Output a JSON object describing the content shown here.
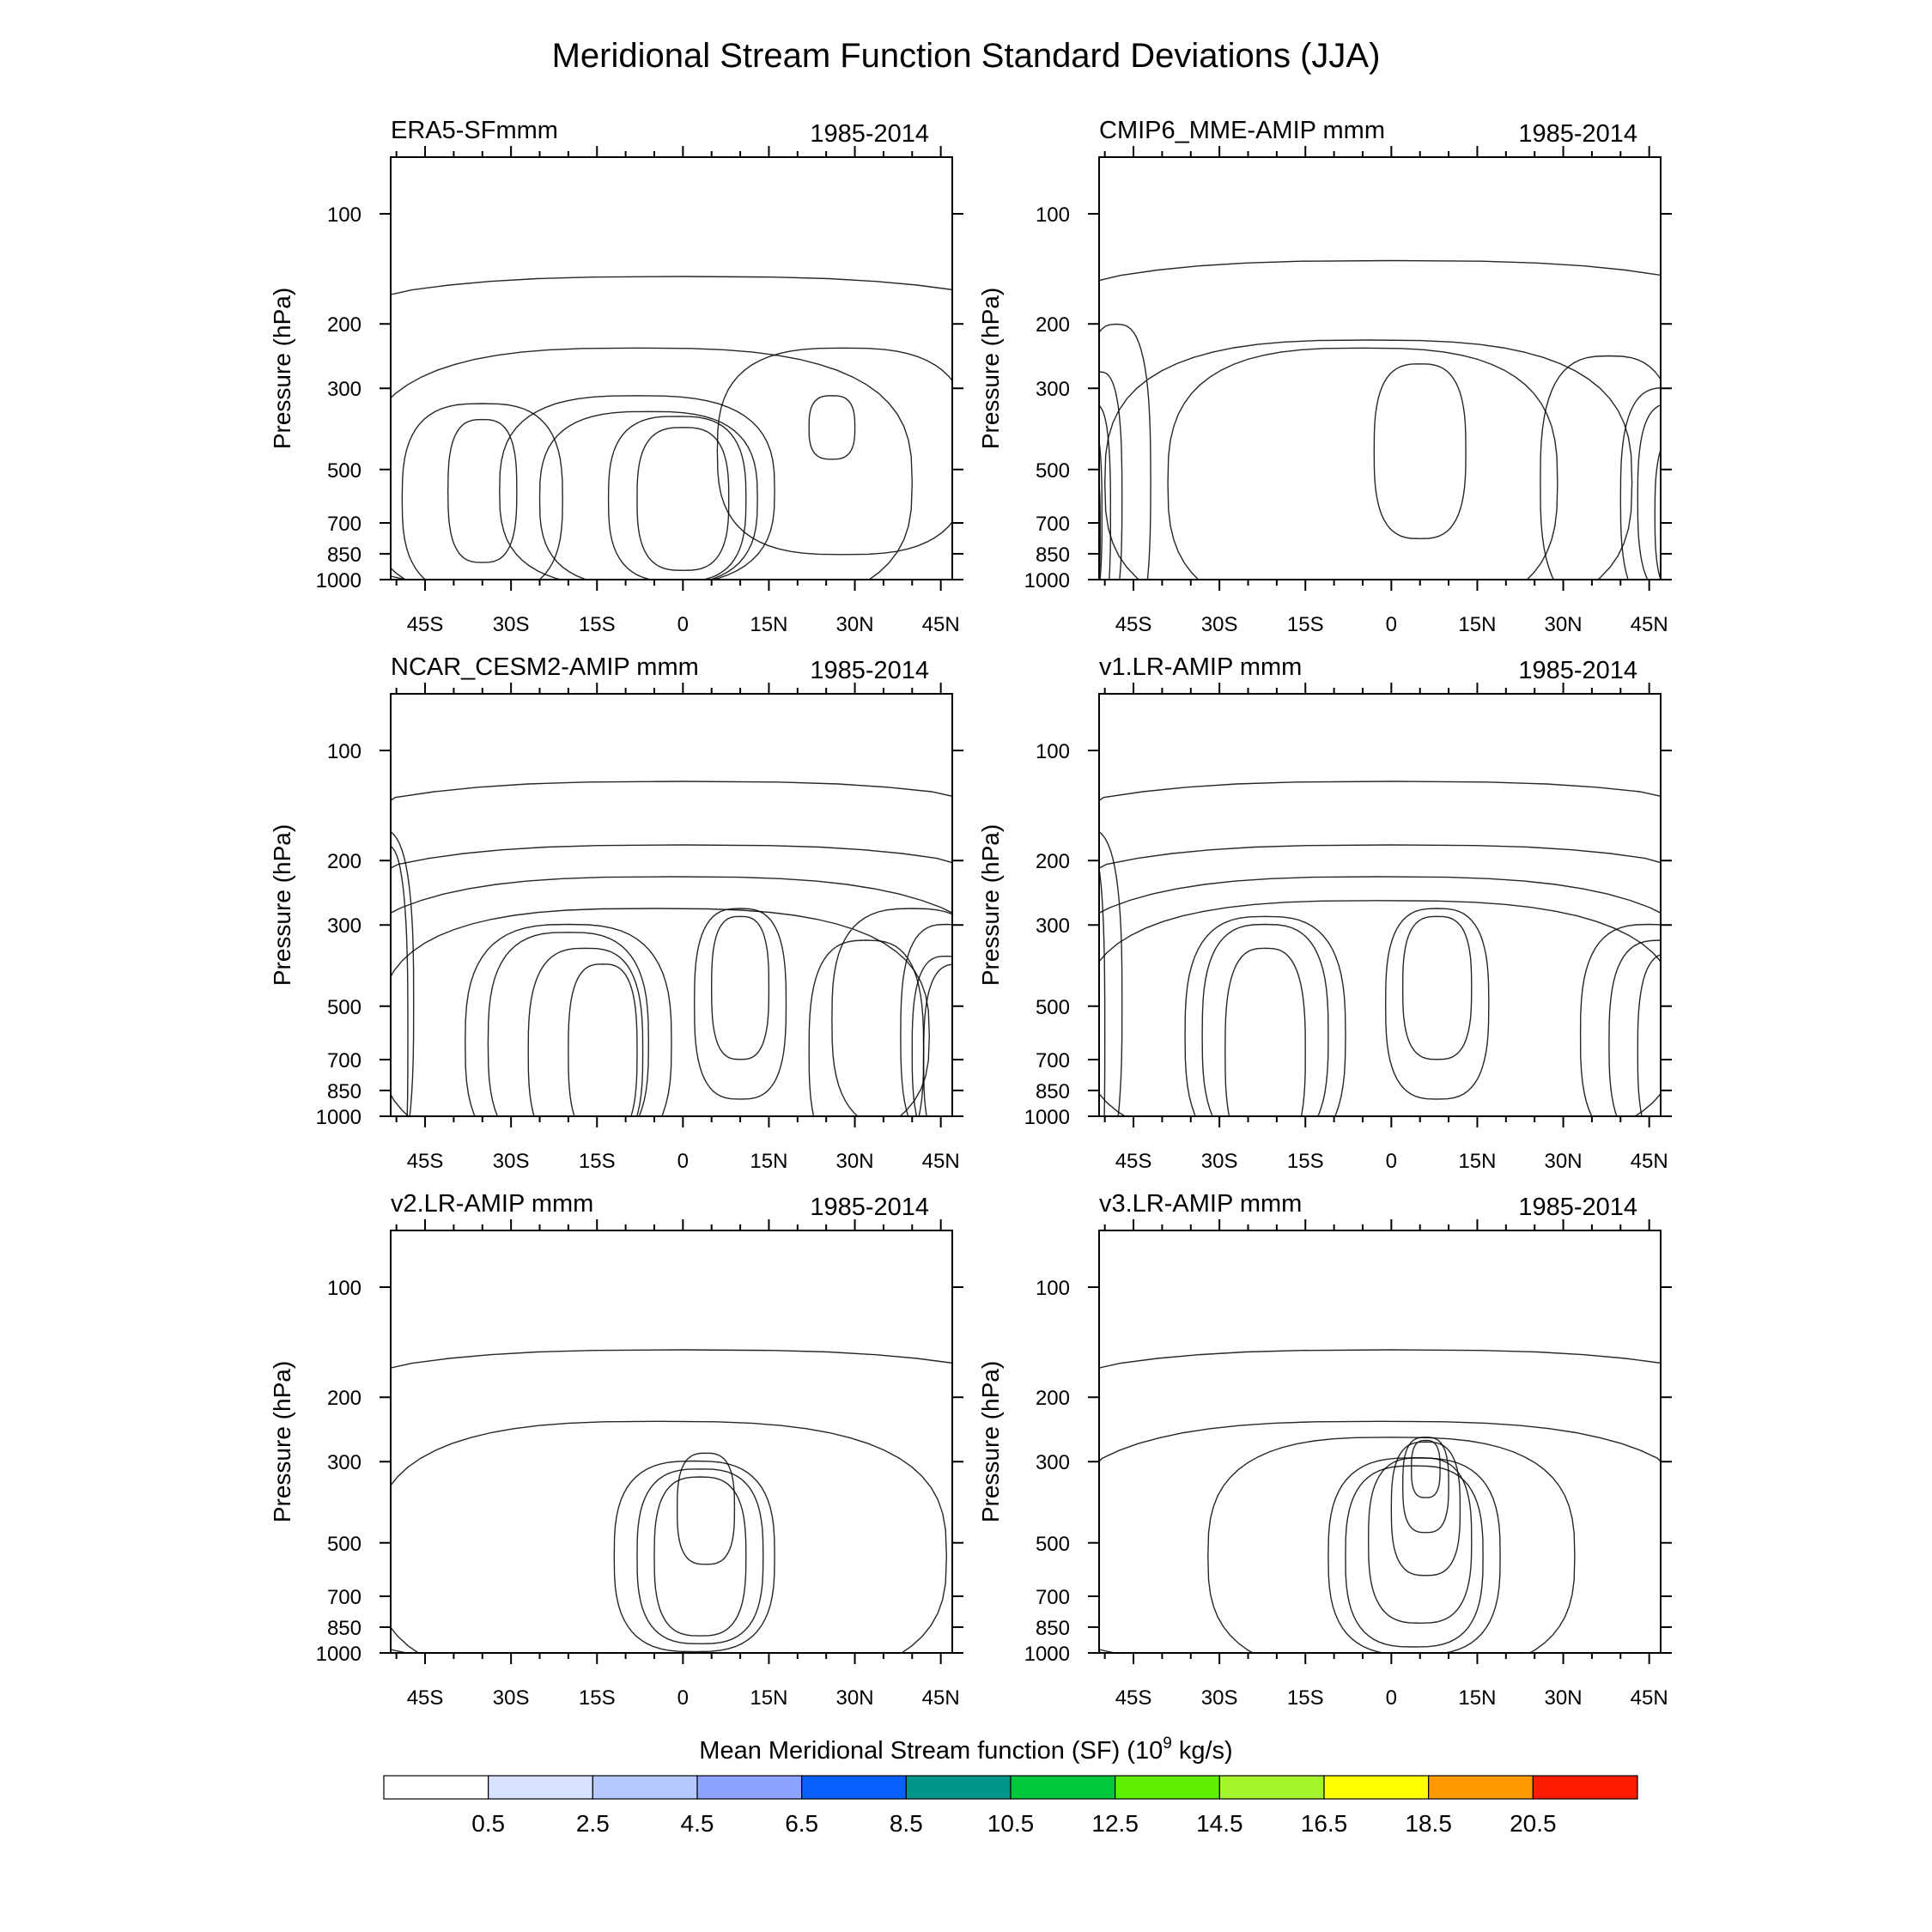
{
  "chart_data": {
    "type": "contourf",
    "title": "Meridional Stream Function Standard Deviations (JJA)",
    "ylabel": "Pressure (hPa)",
    "y_ticks": [
      100,
      200,
      300,
      500,
      700,
      850,
      1000
    ],
    "x_ticks": [
      "45S",
      "30S",
      "15S",
      "0",
      "15N",
      "30N",
      "45N"
    ],
    "x_tick_values": [
      -45,
      -30,
      -15,
      0,
      15,
      30,
      45
    ],
    "xlim": [
      -51,
      47
    ],
    "ylim": [
      1000,
      70
    ],
    "colorbar": {
      "label_prefix": "Mean Meridional Stream function (SF) (10",
      "label_exp": "9",
      "label_suffix": " kg/s)",
      "levels": [
        "0.5",
        "2.5",
        "4.5",
        "6.5",
        "8.5",
        "10.5",
        "12.5",
        "14.5",
        "16.5",
        "18.5",
        "20.5"
      ],
      "colors": [
        "#ffffff",
        "#d6e2ff",
        "#b5c9ff",
        "#8ea2ff",
        "#0a5fff",
        "#00968c",
        "#00c83c",
        "#5ef000",
        "#a5f52d",
        "#ffff00",
        "#ff9900",
        "#ff1a00"
      ]
    },
    "panels": [
      {
        "name": "ERA5-SFmmm",
        "period": "1985-2014",
        "levels": [
          {
            "level": 2,
            "blobs": [
              {
                "lat": 0,
                "lp": 6.0,
                "wl": 80,
                "wp": 1.0
              }
            ]
          },
          {
            "level": 3,
            "blobs": [
              {
                "lat": -8,
                "lp": 6.3,
                "wl": 48,
                "wp": 0.85
              },
              {
                "lat": -35,
                "lp": 6.4,
                "wl": 14,
                "wp": 0.6
              },
              {
                "lat": 28,
                "lp": 6.1,
                "wl": 22,
                "wp": 0.65
              }
            ]
          },
          {
            "level": 4,
            "blobs": [
              {
                "lat": -35,
                "lp": 6.35,
                "wl": 6,
                "wp": 0.45
              },
              {
                "lat": -8,
                "lp": 6.35,
                "wl": 24,
                "wp": 0.6
              },
              {
                "lat": 26,
                "lp": 5.95,
                "wl": 4,
                "wp": 0.2
              }
            ]
          },
          {
            "level": 5,
            "blobs": [
              {
                "lat": -6,
                "lp": 6.4,
                "wl": 19,
                "wp": 0.55
              }
            ]
          },
          {
            "level": 6,
            "blobs": [
              {
                "lat": -1,
                "lp": 6.4,
                "wl": 12,
                "wp": 0.52
              }
            ]
          },
          {
            "level": 7,
            "blobs": [
              {
                "lat": 0,
                "lp": 6.4,
                "wl": 8,
                "wp": 0.45
              }
            ]
          }
        ]
      },
      {
        "name": "CMIP6_MME-AMIP  mmm",
        "period": "1985-2014",
        "levels": [
          {
            "level": 2,
            "blobs": [
              {
                "lat": 0,
                "lp": 6.0,
                "wl": 80,
                "wp": 1.1
              }
            ]
          },
          {
            "level": 3,
            "blobs": [
              {
                "lat": -4,
                "lp": 6.3,
                "wl": 46,
                "wp": 0.9
              },
              {
                "lat": -48,
                "lp": 6.3,
                "wl": 6,
                "wp": 1.0
              },
              {
                "lat": 38,
                "lp": 6.3,
                "wl": 12,
                "wp": 0.8
              }
            ]
          },
          {
            "level": 4,
            "blobs": [
              {
                "lat": -5,
                "lp": 6.3,
                "wl": 34,
                "wp": 0.85
              },
              {
                "lat": -51,
                "lp": 6.4,
                "wl": 4,
                "wp": 0.8
              },
              {
                "lat": 48,
                "lp": 6.4,
                "wl": 8,
                "wp": 0.7
              }
            ]
          },
          {
            "level": 5,
            "blobs": [
              {
                "lat": 5,
                "lp": 6.1,
                "wl": 8,
                "wp": 0.55
              },
              {
                "lat": -52,
                "lp": 6.5,
                "wl": 3,
                "wp": 0.7
              },
              {
                "lat": 49,
                "lp": 6.4,
                "wl": 6,
                "wp": 0.6
              }
            ]
          },
          {
            "level": 7,
            "blobs": [
              {
                "lat": -53,
                "lp": 6.5,
                "wl": 2.5,
                "wp": 0.6
              },
              {
                "lat": 50,
                "lp": 6.5,
                "wl": 4,
                "wp": 0.5
              }
            ]
          },
          {
            "level": 9,
            "blobs": [
              {
                "lat": -53,
                "lp": 6.6,
                "wl": 2.2,
                "wp": 0.5
              },
              {
                "lat": 51,
                "lp": 6.5,
                "wl": 3,
                "wp": 0.4
              }
            ]
          },
          {
            "level": 11,
            "blobs": [
              {
                "lat": -54,
                "lp": 6.7,
                "wl": 2,
                "wp": 0.4
              }
            ]
          }
        ]
      },
      {
        "name": "NCAR_CESM2-AMIP  mmm",
        "period": "1985-2014",
        "levels": [
          {
            "level": 2,
            "blobs": [
              {
                "lat": 0,
                "lp": 6.0,
                "wl": 85,
                "wp": 1.2
              }
            ]
          },
          {
            "level": 3,
            "blobs": [
              {
                "lat": 0,
                "lp": 6.2,
                "wl": 75,
                "wp": 1.0
              }
            ]
          },
          {
            "level": 4,
            "blobs": [
              {
                "lat": -2,
                "lp": 6.3,
                "wl": 60,
                "wp": 0.9
              },
              {
                "lat": -53,
                "lp": 6.2,
                "wl": 6,
                "wp": 1.1
              }
            ]
          },
          {
            "level": 5,
            "blobs": [
              {
                "lat": -5,
                "lp": 6.4,
                "wl": 48,
                "wp": 0.8
              },
              {
                "lat": 40,
                "lp": 6.3,
                "wl": 14,
                "wp": 0.7
              }
            ]
          },
          {
            "level": 6,
            "blobs": [
              {
                "lat": -20,
                "lp": 6.45,
                "wl": 18,
                "wp": 0.75
              },
              {
                "lat": 10,
                "lp": 6.2,
                "wl": 8,
                "wp": 0.6
              },
              {
                "lat": 32,
                "lp": 6.5,
                "wl": 10,
                "wp": 0.7
              },
              {
                "lat": 46,
                "lp": 6.4,
                "wl": 8,
                "wp": 0.7
              }
            ]
          },
          {
            "level": 8,
            "blobs": [
              {
                "lat": -20,
                "lp": 6.45,
                "wl": 14,
                "wp": 0.7
              },
              {
                "lat": 10,
                "lp": 6.1,
                "wl": 5,
                "wp": 0.45
              },
              {
                "lat": 46,
                "lp": 6.5,
                "wl": 6,
                "wp": 0.6
              }
            ]
          },
          {
            "level": 9,
            "blobs": [
              {
                "lat": -17,
                "lp": 6.5,
                "wl": 10,
                "wp": 0.65
              }
            ]
          },
          {
            "level": 10,
            "blobs": [
              {
                "lat": -14,
                "lp": 6.5,
                "wl": 6,
                "wp": 0.55
              }
            ]
          },
          {
            "level": 11,
            "blobs": [
              {
                "lat": -52,
                "lp": 6.4,
                "wl": 4,
                "wp": 1.2
              },
              {
                "lat": 48,
                "lp": 6.55,
                "wl": 6,
                "wp": 0.6
              }
            ]
          }
        ]
      },
      {
        "name": "v1.LR-AMIP  mmm",
        "period": "1985-2014",
        "levels": [
          {
            "level": 2,
            "blobs": [
              {
                "lat": 0,
                "lp": 6.0,
                "wl": 85,
                "wp": 1.2
              }
            ]
          },
          {
            "level": 3,
            "blobs": [
              {
                "lat": 0,
                "lp": 6.2,
                "wl": 75,
                "wp": 1.0
              }
            ]
          },
          {
            "level": 4,
            "blobs": [
              {
                "lat": -2,
                "lp": 6.3,
                "wl": 60,
                "wp": 0.9
              },
              {
                "lat": -53,
                "lp": 6.2,
                "wl": 6,
                "wp": 1.1
              }
            ]
          },
          {
            "level": 5,
            "blobs": [
              {
                "lat": -2,
                "lp": 6.35,
                "wl": 52,
                "wp": 0.8
              }
            ]
          },
          {
            "level": 6,
            "blobs": [
              {
                "lat": -22,
                "lp": 6.4,
                "wl": 14,
                "wp": 0.75
              },
              {
                "lat": 8,
                "lp": 6.2,
                "wl": 9,
                "wp": 0.6
              },
              {
                "lat": 45,
                "lp": 6.4,
                "wl": 12,
                "wp": 0.7
              }
            ]
          },
          {
            "level": 8,
            "blobs": [
              {
                "lat": -22,
                "lp": 6.4,
                "wl": 11,
                "wp": 0.7
              },
              {
                "lat": 8,
                "lp": 6.1,
                "wl": 6,
                "wp": 0.45
              },
              {
                "lat": 47,
                "lp": 6.45,
                "wl": 9,
                "wp": 0.65
              }
            ]
          },
          {
            "level": 11,
            "blobs": [
              {
                "lat": -22,
                "lp": 6.5,
                "wl": 7,
                "wp": 0.65
              },
              {
                "lat": -53,
                "lp": 6.4,
                "wl": 3,
                "wp": 1.2
              },
              {
                "lat": 49,
                "lp": 6.5,
                "wl": 6,
                "wp": 0.62
              }
            ]
          }
        ]
      },
      {
        "name": "v2.LR-AMIP  mmm",
        "period": "1985-2014",
        "levels": [
          {
            "level": 2,
            "blobs": [
              {
                "lat": 0,
                "lp": 6.0,
                "wl": 80,
                "wp": 1.0
              }
            ]
          },
          {
            "level": 3,
            "blobs": [
              {
                "lat": -4,
                "lp": 6.3,
                "wl": 50,
                "wp": 0.85
              }
            ]
          },
          {
            "level": 4,
            "blobs": [
              {
                "lat": 2,
                "lp": 6.3,
                "wl": 14,
                "wp": 0.6
              }
            ]
          },
          {
            "level": 5,
            "blobs": [
              {
                "lat": 3,
                "lp": 6.3,
                "wl": 11,
                "wp": 0.55
              }
            ]
          },
          {
            "level": 6,
            "blobs": [
              {
                "lat": 3,
                "lp": 6.3,
                "wl": 8,
                "wp": 0.5
              }
            ]
          },
          {
            "level": 7,
            "blobs": [
              {
                "lat": 4,
                "lp": 6.0,
                "wl": 5,
                "wp": 0.35
              }
            ]
          }
        ]
      },
      {
        "name": "v3.LR-AMIP  mmm",
        "period": "1985-2014",
        "levels": [
          {
            "level": 2,
            "blobs": [
              {
                "lat": 0,
                "lp": 6.0,
                "wl": 80,
                "wp": 1.0
              }
            ]
          },
          {
            "level": 3,
            "blobs": [
              {
                "lat": -2,
                "lp": 6.3,
                "wl": 58,
                "wp": 0.85
              }
            ]
          },
          {
            "level": 4,
            "blobs": [
              {
                "lat": 0,
                "lp": 6.3,
                "wl": 32,
                "wp": 0.75
              }
            ]
          },
          {
            "level": 5,
            "blobs": [
              {
                "lat": 4,
                "lp": 6.3,
                "wl": 15,
                "wp": 0.62
              }
            ]
          },
          {
            "level": 6,
            "blobs": [
              {
                "lat": 4,
                "lp": 6.3,
                "wl": 12,
                "wp": 0.57
              }
            ]
          },
          {
            "level": 7,
            "blobs": [
              {
                "lat": 5,
                "lp": 6.2,
                "wl": 9,
                "wp": 0.52
              }
            ]
          },
          {
            "level": 8,
            "blobs": [
              {
                "lat": 6,
                "lp": 6.0,
                "wl": 6,
                "wp": 0.42
              }
            ]
          },
          {
            "level": 9,
            "blobs": [
              {
                "lat": 6,
                "lp": 5.85,
                "wl": 4,
                "wp": 0.3
              }
            ]
          },
          {
            "level": 10,
            "blobs": [
              {
                "lat": 6,
                "lp": 5.75,
                "wl": 2.5,
                "wp": 0.18
              }
            ]
          }
        ]
      }
    ]
  }
}
